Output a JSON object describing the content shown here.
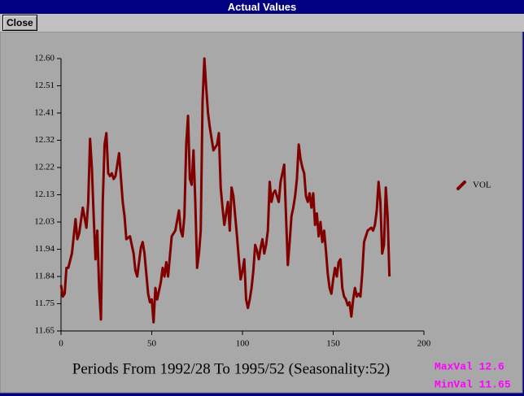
{
  "window_title": "Actual Values",
  "close_button": "Close",
  "chart_data": {
    "type": "line",
    "xlabel": "Periods From 1992/28 To 1995/52 (Seasonality:52)",
    "max_label": "MaxVal 12.6",
    "min_label": "MinVal 11.65",
    "xlim": [
      0,
      200
    ],
    "xticks": [
      0,
      50,
      100,
      150,
      200
    ],
    "ylim": [
      11.65,
      12.6
    ],
    "yticks": [
      11.65,
      {
        "value": 11.745,
        "label": "11.75"
      },
      11.84,
      {
        "value": 11.935,
        "label": "11.94"
      },
      12.03,
      {
        "value": 12.125,
        "label": "12.13"
      },
      12.22,
      {
        "value": 12.315,
        "label": "12.32"
      },
      12.41,
      {
        "value": 12.505,
        "label": "12.51"
      },
      {
        "value": 12.6,
        "label": "12.60"
      }
    ],
    "legend": "right",
    "x": [
      0,
      1,
      2,
      3,
      4,
      6,
      8,
      9,
      10,
      12,
      14,
      15,
      16,
      17,
      18,
      19,
      20,
      21,
      22,
      23,
      24,
      25,
      26,
      27,
      28,
      29,
      30,
      32,
      34,
      35,
      36,
      38,
      40,
      41,
      42,
      44,
      45,
      46,
      48,
      49,
      50,
      51,
      52,
      53,
      55,
      56,
      57,
      58,
      59,
      61,
      63,
      65,
      66,
      67,
      68,
      69,
      70,
      71,
      72,
      73,
      74,
      75,
      76,
      77,
      78,
      79,
      80,
      81,
      82,
      84,
      86,
      87,
      88,
      89,
      90,
      91,
      92,
      93,
      94,
      95,
      96,
      97,
      98,
      99,
      100,
      101,
      102,
      103,
      104,
      105,
      106,
      107,
      108,
      109,
      110,
      111,
      112,
      113,
      114,
      115,
      116,
      117,
      118,
      120,
      121,
      122,
      123,
      124,
      125,
      126,
      127,
      128,
      129,
      130,
      131,
      132,
      133,
      134,
      135,
      136,
      137,
      138,
      139,
      140,
      141,
      142,
      143,
      144,
      145,
      146,
      147,
      148,
      149,
      150,
      151,
      152,
      153,
      154,
      155,
      156,
      157,
      158,
      159,
      160,
      161,
      162,
      163,
      164,
      165,
      166,
      167,
      168,
      169,
      171,
      172,
      173,
      174,
      175,
      176,
      177,
      178,
      179,
      180,
      181
    ],
    "series": [
      {
        "name": "VOL",
        "color": "#800000",
        "values": [
          11.81,
          11.77,
          11.78,
          11.87,
          11.87,
          11.92,
          12.04,
          11.97,
          11.99,
          12.08,
          12.01,
          12.1,
          12.32,
          12.22,
          12.05,
          11.9,
          12.0,
          11.8,
          11.69,
          12.1,
          12.3,
          12.34,
          12.2,
          12.19,
          12.2,
          12.18,
          12.19,
          12.27,
          12.1,
          12.05,
          11.97,
          11.98,
          11.92,
          11.86,
          11.84,
          11.94,
          11.96,
          11.92,
          11.78,
          11.75,
          11.76,
          11.68,
          11.8,
          11.76,
          11.82,
          11.87,
          11.84,
          11.89,
          11.84,
          11.98,
          12.0,
          12.07,
          12.0,
          11.98,
          12.05,
          12.3,
          12.4,
          12.18,
          12.16,
          12.28,
          12.1,
          11.87,
          11.92,
          12.0,
          12.45,
          12.6,
          12.5,
          12.41,
          12.36,
          12.28,
          12.3,
          12.34,
          12.15,
          12.08,
          12.02,
          12.06,
          12.1,
          12.0,
          12.15,
          12.12,
          12.05,
          11.98,
          11.9,
          11.83,
          11.86,
          11.9,
          11.76,
          11.73,
          11.76,
          11.8,
          11.86,
          11.95,
          11.93,
          11.9,
          11.94,
          11.97,
          11.92,
          11.95,
          12.0,
          12.17,
          12.1,
          12.13,
          12.14,
          12.1,
          12.17,
          12.2,
          12.23,
          12.05,
          11.88,
          11.96,
          12.05,
          12.08,
          12.12,
          12.18,
          12.3,
          12.25,
          12.22,
          12.2,
          12.12,
          12.1,
          12.13,
          12.08,
          12.13,
          12.02,
          12.06,
          11.98,
          12.03,
          11.96,
          12.0,
          11.93,
          11.85,
          11.8,
          11.78,
          11.83,
          11.87,
          11.84,
          11.89,
          11.9,
          11.8,
          11.77,
          11.76,
          11.74,
          11.75,
          11.7,
          11.76,
          11.8,
          11.77,
          11.78,
          11.77,
          11.85,
          11.96,
          11.98,
          12.0,
          12.01,
          12.0,
          12.02,
          12.07,
          12.17,
          12.1,
          11.92,
          11.95,
          12.15,
          12.05,
          11.84
        ]
      }
    ]
  }
}
